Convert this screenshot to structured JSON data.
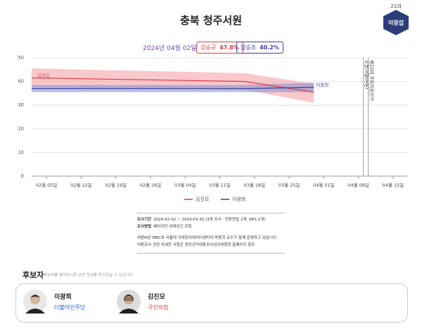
{
  "header": {
    "title": "충북 청주서원",
    "term": "21대",
    "incumbent": "이장섭"
  },
  "chart_data": {
    "type": "line",
    "date": "2024년 04월 02일",
    "poll_boxes": [
      {
        "name": "강승규",
        "label": "47.8%",
        "color": "#e0393e"
      },
      {
        "name": "양승조",
        "label": "40.2%",
        "color": "#3b3f9c"
      }
    ],
    "x": [
      "2024-02-02",
      "2024-03-16",
      "2024-03-30"
    ],
    "series": [
      {
        "name": "김진모",
        "color": "#e0393e",
        "band_color": "#f4a3a8",
        "values": [
          41.5,
          40,
          35.5
        ],
        "lower": [
          37.5,
          36.5,
          31
        ],
        "upper": [
          45.5,
          43.5,
          39
        ]
      },
      {
        "name": "이광희",
        "color": "#3b3f9c",
        "band_color": "#8e92d4",
        "values": [
          37,
          37,
          37.5
        ],
        "lower": [
          35.5,
          35.5,
          35.5
        ],
        "upper": [
          38.5,
          38.5,
          39.5
        ]
      }
    ],
    "xlim": [
      "2024-02-02",
      "2024-04-18"
    ],
    "xticks": [
      {
        "value": "2024-02-05",
        "label": "02월 05일"
      },
      {
        "value": "2024-02-12",
        "label": "02월 12일"
      },
      {
        "value": "2024-02-19",
        "label": "02월 19일"
      },
      {
        "value": "2024-02-26",
        "label": "02월 26일"
      },
      {
        "value": "2024-03-04",
        "label": "03월 04일"
      },
      {
        "value": "2024-03-11",
        "label": "03월 11일"
      },
      {
        "value": "2024-03-18",
        "label": "03월 18일"
      },
      {
        "value": "2024-03-25",
        "label": "03월 25일"
      },
      {
        "value": "2024-04-01",
        "label": "04월 01일"
      },
      {
        "value": "2024-04-08",
        "label": "04월 08일"
      },
      {
        "value": "2024-04-15",
        "label": "04월 15일"
      }
    ],
    "ylim": [
      0,
      50
    ],
    "yticks": [
      0,
      10,
      20,
      30,
      40,
      50
    ],
    "grid": true,
    "events": [
      {
        "x": "2024-04-09",
        "label": "오늘(4월09일)"
      },
      {
        "x": "2024-04-10",
        "label": "제22대 국회의원선거"
      }
    ]
  },
  "notes": {
    "period": {
      "label": "조사기간",
      "text": "2024-02-02 ~ 2024-03-30 (3개 조사 · 전화면접 2개, ARS 1개)"
    },
    "method": {
      "label": "조사방법",
      "text": "베이지안 상태공간 모형"
    },
    "lines": [
      "여론M은 MBC와 서울대 국제정치데이터센터의 박종희 교수가 함께 운영하고 있습니다.",
      "여론조사 관련 자세한 사항은 중앙선거여론조사심의위원회 홈페이지 참조"
    ]
  },
  "candidates": {
    "title": "후보자",
    "hint": "후보자를 클릭하시면 관련 정보를 확인하실 수 있습니다",
    "list": [
      {
        "name": "이광희",
        "party": "더불어민주당",
        "party_color": "#2a5bd7"
      },
      {
        "name": "김진모",
        "party": "국민의힘",
        "party_color": "#e0393e"
      }
    ]
  }
}
